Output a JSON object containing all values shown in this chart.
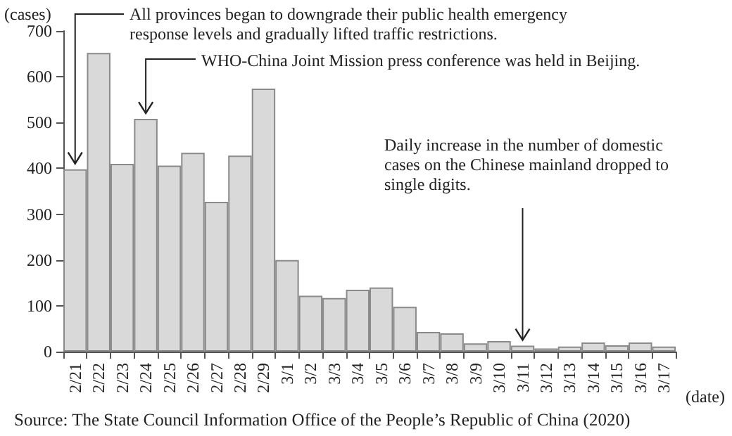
{
  "chart_data": {
    "type": "bar",
    "xlabel": "(date)",
    "ylabel": "(cases)",
    "categories": [
      "2/21",
      "2/22",
      "2/23",
      "2/24",
      "2/25",
      "2/26",
      "2/27",
      "2/28",
      "2/29",
      "3/1",
      "3/2",
      "3/3",
      "3/4",
      "3/5",
      "3/6",
      "3/7",
      "3/8",
      "3/9",
      "3/10",
      "3/11",
      "3/12",
      "3/13",
      "3/14",
      "3/15",
      "3/16",
      "3/17"
    ],
    "values": [
      398,
      652,
      410,
      508,
      406,
      434,
      327,
      428,
      574,
      200,
      122,
      117,
      135,
      140,
      98,
      43,
      40,
      18,
      23,
      13,
      7,
      11,
      20,
      14,
      20,
      11
    ],
    "color": "#d9d9d9",
    "ylim": [
      0,
      700
    ],
    "yticks": [
      0,
      100,
      200,
      300,
      400,
      500,
      600,
      700
    ],
    "grid": false,
    "annotations": [
      {
        "text": "All provinces began to downgrade their public health emergency response levels and gradually lifted traffic restrictions.",
        "x": "2/21",
        "y": 398
      },
      {
        "text": "WHO-China Joint Mission press conference was held in Beijing.",
        "x": "2/24",
        "y": 508
      },
      {
        "text": "Daily increase in the number of domestic cases on the Chinese mainland dropped to single digits.",
        "x": "3/11",
        "y": 13
      },
      "Source: The State Council Information Office of the People’s Republic of China (2020)"
    ]
  }
}
